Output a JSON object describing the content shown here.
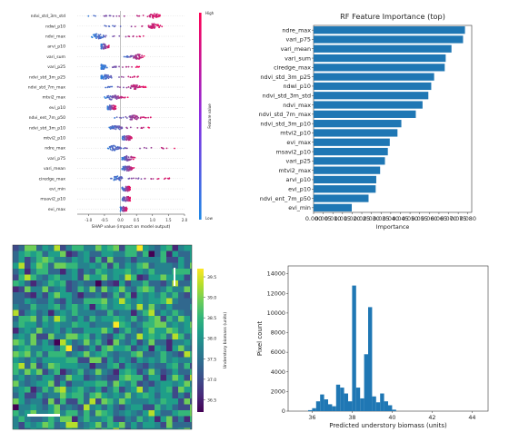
{
  "chart_data": [
    {
      "type": "scatter",
      "subtype": "shap_beeswarm",
      "title": "",
      "xlabel": "SHAP value (impact on model output)",
      "ylabel": "",
      "features": [
        "ndvi_std_3m_std",
        "ndwi_p10",
        "ndvi_max",
        "arvi_p10",
        "vari_sum",
        "vari_p25",
        "ndvi_std_3m_p25",
        "ndvi_std_7m_max",
        "mtvi2_max",
        "evi_p10",
        "ndvi_ent_7m_p50",
        "ndvi_std_3m_p10",
        "mtvi2_p10",
        "ndre_max",
        "vari_p75",
        "vari_mean",
        "ciredge_max",
        "evi_min",
        "msavi2_p10",
        "evi_max"
      ],
      "shap_centers": [
        1.05,
        1.05,
        -0.7,
        -0.55,
        0.55,
        -0.55,
        -0.5,
        0.45,
        -0.25,
        -0.3,
        0.4,
        -0.15,
        0.2,
        -0.2,
        0.2,
        0.2,
        -0.1,
        0.2,
        0.2,
        0.1
      ],
      "shap_extents": [
        [
          -1.3,
          1.4
        ],
        [
          -0.6,
          1.3
        ],
        [
          -0.9,
          0.9
        ],
        [
          -0.6,
          -0.35
        ],
        [
          0.1,
          0.75
        ],
        [
          -0.6,
          0.6
        ],
        [
          -0.6,
          0.6
        ],
        [
          -0.5,
          0.8
        ],
        [
          -0.5,
          0.25
        ],
        [
          -0.4,
          -0.15
        ],
        [
          -0.25,
          0.95
        ],
        [
          -0.4,
          0.9
        ],
        [
          0.05,
          0.35
        ],
        [
          -0.5,
          1.8
        ],
        [
          0.05,
          0.45
        ],
        [
          0.05,
          0.45
        ],
        [
          -0.35,
          1.6
        ],
        [
          0.05,
          0.3
        ],
        [
          0.05,
          0.3
        ],
        [
          0.0,
          0.2
        ]
      ],
      "x_ticks": [
        "-1.0",
        "-0.5",
        "0.0",
        "0.5",
        "1.0",
        "1.5",
        "2.0"
      ],
      "xlim": [
        -1.35,
        2.0
      ],
      "colorbar_label": "Feature value",
      "colorbar_high": "High",
      "colorbar_low": "Low",
      "colors": {
        "low": "#1e88e5",
        "high": "#ff0052"
      }
    },
    {
      "type": "bar",
      "orientation": "horizontal",
      "title": "RF Feature Importance (top)",
      "xlabel": "Importance",
      "ylabel": "",
      "categories": [
        "ndre_max",
        "vari_p75",
        "vari_mean",
        "vari_sum",
        "ciredge_max",
        "ndvi_std_3m_p25",
        "ndwi_p10",
        "ndvi_std_3m_std",
        "ndvi_max",
        "ndvi_std_7m_max",
        "ndvi_std_3m_p10",
        "mtvi2_p10",
        "evi_max",
        "msavi2_p10",
        "vari_p25",
        "mtvi2_max",
        "arvi_p10",
        "evi_p10",
        "ndvi_ent_7m_p50",
        "evi_min"
      ],
      "values": [
        0.0785,
        0.0775,
        0.0715,
        0.0685,
        0.068,
        0.0625,
        0.061,
        0.0595,
        0.0565,
        0.053,
        0.0455,
        0.0435,
        0.0395,
        0.0385,
        0.037,
        0.0345,
        0.0325,
        0.0322,
        0.0285,
        0.0198
      ],
      "x_ticks": [
        "0.000",
        "0.005",
        "0.010",
        "0.015",
        "0.020",
        "0.025",
        "0.030",
        "0.035",
        "0.040",
        "0.045",
        "0.050",
        "0.055",
        "0.060",
        "0.065",
        "0.070",
        "0.075",
        "0.080"
      ],
      "xlim": [
        0,
        0.082
      ],
      "color": "#1f77b4"
    },
    {
      "type": "heatmap",
      "title": "",
      "colorbar_label": "Understory biomass (units)",
      "colorbar_ticks": [
        "39.5",
        "39.0",
        "38.5",
        "38.0",
        "37.5",
        "37.0",
        "36.5"
      ],
      "value_range": [
        36.2,
        39.7
      ],
      "colormap": "viridis"
    },
    {
      "type": "bar",
      "subtype": "histogram",
      "title": "",
      "xlabel": "Predicted understory biomass (units)",
      "ylabel": "Pixel count",
      "bin_width": 0.2,
      "x": [
        35.9,
        36.1,
        36.3,
        36.5,
        36.7,
        36.9,
        37.1,
        37.3,
        37.5,
        37.7,
        37.9,
        38.1,
        38.3,
        38.5,
        38.7,
        38.9,
        39.1,
        39.3,
        39.5,
        39.7,
        39.9,
        40.1
      ],
      "values": [
        100,
        300,
        1000,
        1700,
        1200,
        700,
        500,
        2700,
        2400,
        1800,
        1000,
        12800,
        2400,
        1300,
        5800,
        10600,
        1500,
        900,
        1800,
        1000,
        600,
        150
      ],
      "x_ticks": [
        "36",
        "38",
        "40",
        "42",
        "44"
      ],
      "y_ticks": [
        "0",
        "2000",
        "4000",
        "6000",
        "8000",
        "10000",
        "12000",
        "14000"
      ],
      "xlim": [
        34.8,
        44.8
      ],
      "ylim": [
        0,
        14800
      ],
      "color": "#1f77b4"
    }
  ]
}
